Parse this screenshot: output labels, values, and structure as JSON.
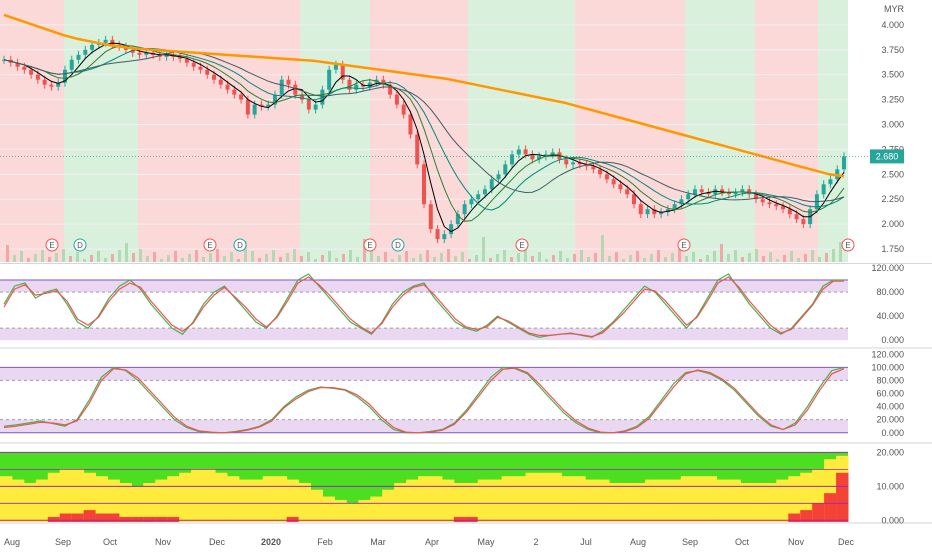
{
  "chart_data": [
    {
      "panel": "price",
      "type": "candlestick",
      "currency": "MYR",
      "current_price_label": "2.680",
      "current_price": 2.68,
      "y_ticks": [
        4.0,
        3.75,
        3.5,
        3.25,
        3.0,
        2.75,
        2.5,
        2.25,
        2.0,
        1.75
      ],
      "y_tick_labels": [
        "4.000",
        "3.750",
        "3.500",
        "3.250",
        "3.000",
        "2.750",
        "2.500",
        "2.250",
        "2.000",
        "1.750"
      ],
      "ylim": [
        1.62,
        4.25
      ],
      "close_series": [
        3.65,
        3.62,
        3.58,
        3.55,
        3.5,
        3.45,
        3.4,
        3.38,
        3.42,
        3.55,
        3.65,
        3.7,
        3.75,
        3.8,
        3.82,
        3.85,
        3.8,
        3.78,
        3.75,
        3.72,
        3.7,
        3.72,
        3.7,
        3.68,
        3.7,
        3.68,
        3.66,
        3.62,
        3.58,
        3.55,
        3.5,
        3.45,
        3.4,
        3.35,
        3.3,
        3.25,
        3.1,
        3.2,
        3.18,
        3.2,
        3.3,
        3.45,
        3.4,
        3.3,
        3.25,
        3.15,
        3.2,
        3.35,
        3.55,
        3.6,
        3.45,
        3.35,
        3.4,
        3.38,
        3.42,
        3.45,
        3.4,
        3.3,
        3.2,
        3.1,
        2.9,
        2.6,
        2.2,
        1.95,
        1.85,
        1.9,
        2.0,
        2.1,
        2.2,
        2.25,
        2.3,
        2.35,
        2.45,
        2.5,
        2.6,
        2.7,
        2.75,
        2.7,
        2.65,
        2.68,
        2.7,
        2.72,
        2.65,
        2.6,
        2.62,
        2.6,
        2.58,
        2.55,
        2.5,
        2.45,
        2.4,
        2.35,
        2.3,
        2.2,
        2.1,
        2.15,
        2.1,
        2.12,
        2.15,
        2.2,
        2.25,
        2.3,
        2.35,
        2.32,
        2.3,
        2.35,
        2.32,
        2.3,
        2.32,
        2.35,
        2.3,
        2.25,
        2.22,
        2.2,
        2.18,
        2.15,
        2.1,
        2.05,
        2.0,
        2.15,
        2.3,
        2.4,
        2.45,
        2.55,
        2.68
      ],
      "moving_average_series": [
        4.1,
        4.05,
        4.0,
        3.95,
        3.9,
        3.86,
        3.83,
        3.8,
        3.78,
        3.76,
        3.75,
        3.74,
        3.73,
        3.72,
        3.71,
        3.7,
        3.69,
        3.68,
        3.67,
        3.66,
        3.65,
        3.64,
        3.62,
        3.6,
        3.58,
        3.56,
        3.54,
        3.52,
        3.5,
        3.48,
        3.46,
        3.43,
        3.4,
        3.37,
        3.34,
        3.31,
        3.28,
        3.25,
        3.22,
        3.18,
        3.14,
        3.1,
        3.06,
        3.02,
        2.98,
        2.94,
        2.9,
        2.86,
        2.82,
        2.78,
        2.74,
        2.7,
        2.66,
        2.62,
        2.58,
        2.54,
        2.5,
        2.48
      ],
      "markers": [
        "E",
        "D",
        "E",
        "D",
        "E",
        "D",
        "E",
        "E",
        "E"
      ],
      "colors": {
        "ma_line": "#ff9800",
        "bull": "#26a69a",
        "bear": "#ef5350",
        "bg_bull": "#d9f0dc",
        "bg_bear": "#fbd9d9"
      }
    },
    {
      "panel": "oscillator-1",
      "type": "line",
      "y_ticks": [
        120,
        80,
        40,
        0
      ],
      "y_tick_labels": [
        "120.000",
        "80.000",
        "40.000",
        "0.000"
      ],
      "ylim": [
        -8,
        125
      ],
      "bands": [
        20,
        80,
        100
      ],
      "series": [
        {
          "color": "#4caf50",
          "values": [
            60,
            90,
            95,
            70,
            80,
            85,
            60,
            30,
            20,
            40,
            70,
            90,
            100,
            85,
            60,
            40,
            20,
            10,
            30,
            60,
            80,
            90,
            70,
            50,
            30,
            20,
            40,
            70,
            100,
            110,
            90,
            70,
            50,
            30,
            20,
            10,
            30,
            60,
            80,
            90,
            95,
            70,
            50,
            30,
            20,
            15,
            25,
            40,
            30,
            20,
            10,
            5,
            8,
            10,
            12,
            8,
            5,
            15,
            30,
            50,
            70,
            90,
            80,
            60,
            40,
            20,
            40,
            70,
            100,
            110,
            85,
            60,
            40,
            20,
            10,
            20,
            40,
            60,
            90,
            100,
            100
          ]
        },
        {
          "color": "#ef5350",
          "values": [
            55,
            85,
            92,
            75,
            78,
            82,
            65,
            35,
            25,
            38,
            65,
            85,
            95,
            88,
            65,
            45,
            25,
            15,
            28,
            55,
            75,
            88,
            72,
            55,
            35,
            22,
            38,
            65,
            95,
            105,
            92,
            75,
            55,
            35,
            22,
            12,
            28,
            55,
            75,
            88,
            92,
            75,
            55,
            35,
            22,
            18,
            22,
            38,
            32,
            22,
            12,
            8,
            8,
            10,
            11,
            9,
            6,
            12,
            28,
            45,
            65,
            85,
            82,
            65,
            45,
            25,
            38,
            65,
            95,
            105,
            88,
            65,
            45,
            25,
            12,
            18,
            38,
            58,
            85,
            98,
            98
          ]
        }
      ],
      "colors": {
        "band_fill": "#ead8f2",
        "band_line": "#7e57c2"
      }
    },
    {
      "panel": "oscillator-2",
      "type": "line",
      "y_ticks": [
        120,
        100,
        80,
        60,
        40,
        20,
        0
      ],
      "y_tick_labels": [
        "120.000",
        "100.000",
        "80.000",
        "60.000",
        "40.000",
        "20.000",
        "0.000"
      ],
      "ylim": [
        -8,
        125
      ],
      "bands": [
        0,
        20,
        80,
        100
      ],
      "series": [
        {
          "color": "#4caf50",
          "values": [
            10,
            12,
            15,
            18,
            14,
            10,
            20,
            50,
            85,
            100,
            95,
            80,
            60,
            40,
            20,
            8,
            2,
            0,
            0,
            2,
            5,
            10,
            20,
            40,
            55,
            65,
            70,
            68,
            65,
            55,
            40,
            20,
            5,
            0,
            0,
            2,
            5,
            15,
            35,
            60,
            85,
            100,
            98,
            90,
            70,
            50,
            30,
            15,
            5,
            0,
            0,
            3,
            10,
            25,
            50,
            75,
            92,
            95,
            90,
            80,
            65,
            45,
            25,
            10,
            5,
            15,
            40,
            70,
            95,
            100
          ]
        },
        {
          "color": "#ef5350",
          "values": [
            8,
            10,
            13,
            16,
            15,
            12,
            18,
            45,
            80,
            98,
            96,
            84,
            64,
            44,
            24,
            10,
            3,
            1,
            0,
            1,
            4,
            9,
            18,
            38,
            52,
            63,
            69,
            69,
            66,
            58,
            44,
            24,
            8,
            1,
            0,
            1,
            4,
            13,
            32,
            56,
            80,
            97,
            99,
            92,
            74,
            54,
            34,
            18,
            7,
            1,
            0,
            2,
            8,
            22,
            46,
            70,
            90,
            96,
            92,
            82,
            68,
            48,
            28,
            12,
            5,
            12,
            35,
            65,
            90,
            98
          ]
        }
      ],
      "colors": {
        "band_fill": "#ead8f2",
        "band_line": "#7e57c2"
      }
    },
    {
      "panel": "oscillator-3",
      "type": "area",
      "y_ticks": [
        20,
        10,
        0
      ],
      "y_tick_labels": [
        "20.000",
        "10.000",
        "0.000"
      ],
      "ylim": [
        -0.5,
        21
      ],
      "top_value": 20,
      "series": [
        {
          "name": "yellow",
          "color": "#ffeb3b",
          "values": [
            13,
            12,
            11,
            12,
            14,
            15,
            15,
            14,
            13,
            12,
            11,
            10,
            11,
            12,
            13,
            14,
            15,
            15,
            14,
            13,
            12,
            12,
            13,
            13,
            12,
            11,
            9,
            7,
            6,
            5,
            6,
            7,
            9,
            11,
            12,
            13,
            13,
            12,
            11,
            11,
            12,
            12,
            13,
            13,
            14,
            14,
            14,
            13,
            13,
            12,
            12,
            11,
            11,
            11,
            12,
            12,
            12,
            13,
            13,
            13,
            12,
            12,
            11,
            11,
            11,
            12,
            13,
            14,
            15,
            18,
            19
          ]
        },
        {
          "name": "red",
          "color": "#f44336",
          "values": [
            0,
            0,
            0,
            0,
            1,
            2,
            2,
            3,
            2,
            2,
            1,
            1,
            1,
            1,
            1,
            0,
            0,
            0,
            0,
            0,
            0,
            0,
            0,
            0,
            1,
            0,
            0,
            0,
            0,
            0,
            0,
            0,
            0,
            0,
            0,
            0,
            0,
            0,
            1,
            1,
            0,
            0,
            0,
            0,
            0,
            0,
            0,
            0,
            0,
            0,
            0,
            0,
            0,
            0,
            0,
            0,
            0,
            0,
            0,
            0,
            0,
            0,
            0,
            0,
            0,
            0,
            2,
            3,
            5,
            8,
            14
          ]
        }
      ],
      "colors": {
        "green": "#4cde20",
        "band_line": "#9c27b0"
      }
    }
  ],
  "x_axis": {
    "labels": [
      "Aug",
      "Sep",
      "Oct",
      "Nov",
      "Dec",
      "2020",
      "Feb",
      "Mar",
      "Apr",
      "May",
      "2",
      "Jul",
      "Aug",
      "Sep",
      "Oct",
      "Nov",
      "Dec"
    ]
  }
}
